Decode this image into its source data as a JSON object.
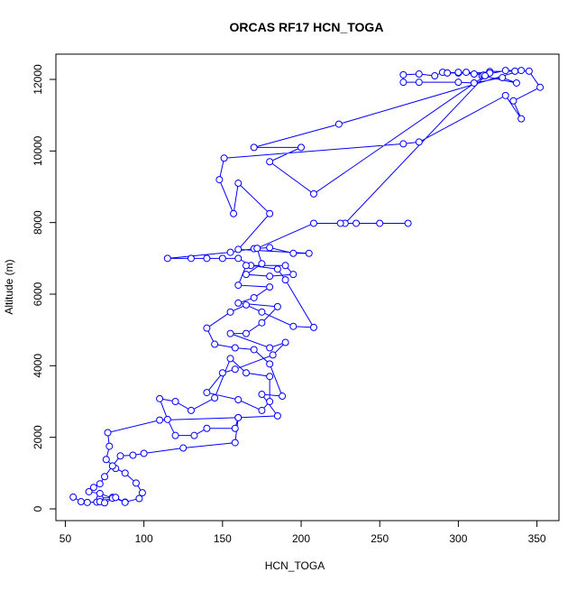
{
  "chart_data": {
    "type": "scatter",
    "lines": true,
    "title": "ORCAS RF17 HCN_TOGA",
    "x_label": "HCN_TOGA",
    "y_label": "Altitude (m)",
    "color": "#0000ff",
    "xlim": [
      44,
      364
    ],
    "ylim": [
      -328,
      12706
    ],
    "xticks": [
      50,
      100,
      150,
      200,
      250,
      300,
      350
    ],
    "yticks": [
      0,
      2000,
      4000,
      6000,
      8000,
      10000,
      12000
    ],
    "x": [
      55,
      60,
      64,
      70,
      72,
      80,
      88,
      97,
      99,
      95,
      88,
      82,
      76,
      78,
      77,
      110,
      160,
      185,
      175,
      188,
      180,
      170,
      158,
      145,
      140,
      155,
      165,
      175,
      195,
      208,
      190,
      185,
      168,
      160,
      150,
      140,
      130,
      115,
      155,
      170,
      180,
      195,
      205,
      160,
      180,
      160,
      157,
      148,
      151,
      265,
      275,
      330,
      340,
      335,
      352,
      345,
      336,
      320,
      310,
      300,
      290,
      285,
      275,
      265,
      265,
      275,
      300,
      310,
      328,
      337,
      315,
      320,
      300,
      293,
      305,
      316,
      330,
      340,
      224,
      170,
      200,
      180,
      208,
      317,
      228,
      225,
      235,
      250,
      268,
      208,
      172,
      175,
      165,
      180,
      195,
      190,
      165,
      160,
      180,
      170,
      160,
      185,
      175,
      165,
      155,
      180,
      190,
      182,
      158,
      150,
      140,
      160,
      175,
      180,
      180,
      165,
      155,
      145,
      130,
      120,
      110,
      115,
      120,
      132,
      140,
      158,
      160,
      158,
      125,
      100,
      93,
      85,
      80,
      75,
      72,
      68,
      65,
      72,
      80,
      72,
      75,
      82,
      88
    ],
    "y": [
      330,
      200,
      180,
      190,
      300,
      320,
      190,
      290,
      450,
      720,
      1000,
      1130,
      1380,
      1750,
      2130,
      2480,
      2550,
      2600,
      3200,
      3150,
      4050,
      4450,
      4500,
      4600,
      5050,
      5500,
      5700,
      5500,
      5100,
      5070,
      6400,
      6700,
      6800,
      7000,
      7000,
      7000,
      7000,
      7000,
      7170,
      7270,
      7300,
      7140,
      7140,
      7250,
      8250,
      9100,
      8250,
      9200,
      9800,
      10200,
      10250,
      11550,
      10900,
      11400,
      11780,
      12230,
      12230,
      12220,
      12150,
      12180,
      12200,
      12100,
      12150,
      12130,
      11920,
      11920,
      11920,
      11900,
      12050,
      11900,
      12100,
      12180,
      12200,
      12180,
      12200,
      12120,
      12250,
      12250,
      10750,
      10100,
      10100,
      9700,
      8800,
      12100,
      7980,
      7980,
      7980,
      7980,
      7980,
      7980,
      7280,
      6850,
      6550,
      6500,
      6550,
      6800,
      6800,
      6250,
      6200,
      5900,
      5750,
      5650,
      5200,
      4900,
      4900,
      4500,
      4650,
      4300,
      3900,
      3800,
      3250,
      3050,
      2750,
      3000,
      3700,
      3800,
      4200,
      3100,
      2750,
      3000,
      3080,
      2500,
      2050,
      2050,
      2250,
      2250,
      2550,
      1850,
      1700,
      1550,
      1500,
      1480,
      1200,
      900,
      700,
      600,
      480,
      430,
      300,
      200,
      170,
      320,
      180
    ]
  }
}
